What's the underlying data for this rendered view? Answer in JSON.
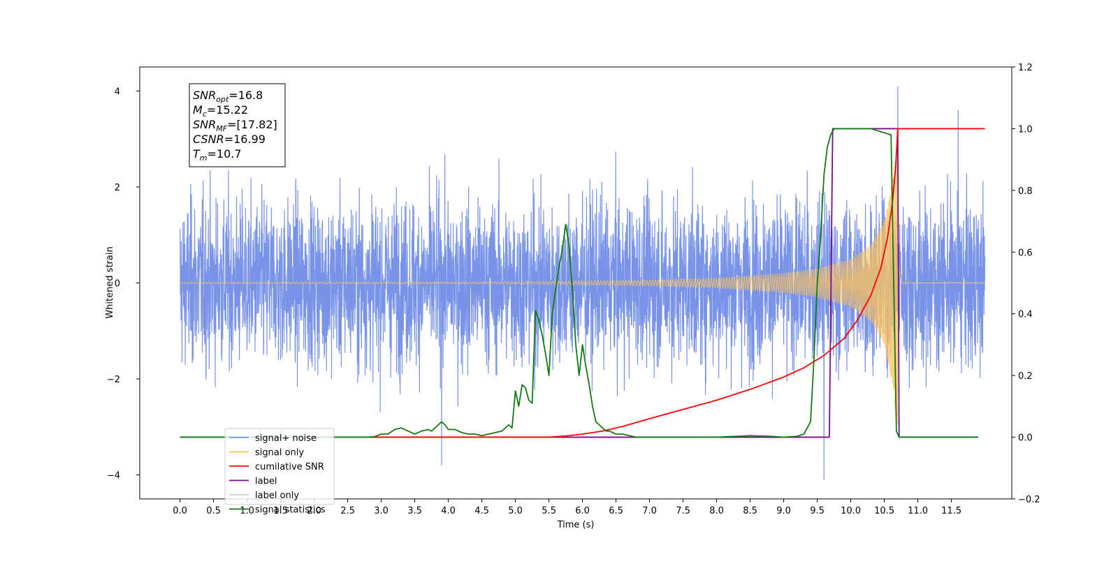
{
  "chart_data": {
    "type": "line",
    "xlabel": "Time (s)",
    "ylabel": "Whitened strain",
    "xlim": [
      -0.6,
      12.4
    ],
    "ylim_left": [
      -4.5,
      4.5
    ],
    "ylim_right": [
      -0.2,
      1.2
    ],
    "x_ticks": [
      0.0,
      0.5,
      1.0,
      1.5,
      2.0,
      2.5,
      3.0,
      3.5,
      4.0,
      4.5,
      5.0,
      5.5,
      6.0,
      6.5,
      7.0,
      7.5,
      8.0,
      8.5,
      9.0,
      9.5,
      10.0,
      10.5,
      11.0,
      11.5
    ],
    "x_tick_labels": [
      "0.0",
      "0.5",
      "1.0",
      "1.5",
      "2.0",
      "2.5",
      "3.0",
      "3.5",
      "4.0",
      "4.5",
      "5.0",
      "5.5",
      "6.0",
      "6.5",
      "7.0",
      "7.5",
      "8.0",
      "8.5",
      "9.0",
      "9.5",
      "10.0",
      "10.5",
      "11.0",
      "11.5"
    ],
    "y_left_ticks": [
      -4,
      -2,
      0,
      2,
      4
    ],
    "y_left_tick_labels": [
      "−4",
      "−2",
      "0",
      "2",
      "4"
    ],
    "y_right_ticks": [
      -0.2,
      0.0,
      0.2,
      0.4,
      0.6,
      0.8,
      1.0,
      1.2
    ],
    "y_right_tick_labels": [
      "−0.2",
      "0.0",
      "0.2",
      "0.4",
      "0.6",
      "0.8",
      "1.0",
      "1.2"
    ],
    "grid": false,
    "legend_placement": "lower-left",
    "annotation": {
      "lines": [
        {
          "main": "SNR",
          "sub": "opt",
          "value": "=16.8"
        },
        {
          "main": "M",
          "sub": "c",
          "value": "=15.22"
        },
        {
          "main": "SNR",
          "sub": "MF",
          "value": "=[17.82]"
        },
        {
          "main": "CSNR",
          "sub": "",
          "value": "=16.99"
        },
        {
          "main": "T",
          "sub": "m",
          "value": "=10.7"
        }
      ]
    },
    "series": [
      {
        "name": "signal+ noise",
        "axis": "left",
        "color": "#7893e8",
        "kind": "noise",
        "t_start": 0.0,
        "t_end": 12.0,
        "approx_range": [
          -4.1,
          4.1
        ],
        "notable_peaks": [
          [
            10.7,
            4.1
          ],
          [
            9.6,
            -4.1
          ],
          [
            11.6,
            3.6
          ],
          [
            3.9,
            -3.8
          ]
        ]
      },
      {
        "name": "signal only",
        "axis": "left",
        "color": "#ffc35a",
        "kind": "chirp",
        "t_start": 0.0,
        "t_end": 12.0,
        "merger_time": 10.7,
        "envelope": [
          [
            0.0,
            0.01
          ],
          [
            5.0,
            0.02
          ],
          [
            6.0,
            0.04
          ],
          [
            7.0,
            0.06
          ],
          [
            8.0,
            0.1
          ],
          [
            9.0,
            0.2
          ],
          [
            9.5,
            0.3
          ],
          [
            10.0,
            0.5
          ],
          [
            10.3,
            0.8
          ],
          [
            10.5,
            1.3
          ],
          [
            10.6,
            2.0
          ],
          [
            10.7,
            3.1
          ],
          [
            10.75,
            0.0
          ],
          [
            12.0,
            0.0
          ]
        ]
      },
      {
        "name": "cumilative SNR",
        "axis": "right",
        "color": "#ff0000",
        "x": [
          0.0,
          5.5,
          5.8,
          6.0,
          6.3,
          6.6,
          7.0,
          7.5,
          8.0,
          8.5,
          9.0,
          9.3,
          9.6,
          9.9,
          10.1,
          10.3,
          10.45,
          10.55,
          10.62,
          10.67,
          10.7,
          12.0
        ],
        "values": [
          0.0,
          0.0,
          0.005,
          0.01,
          0.02,
          0.035,
          0.06,
          0.09,
          0.12,
          0.155,
          0.195,
          0.225,
          0.265,
          0.32,
          0.38,
          0.46,
          0.55,
          0.65,
          0.76,
          0.88,
          1.0,
          1.0
        ]
      },
      {
        "name": "label",
        "axis": "right",
        "color": "#7b0a8b",
        "x": [
          0.0,
          9.68,
          9.73,
          10.7,
          10.72,
          11.9
        ],
        "values": [
          0.0,
          0.0,
          1.0,
          1.0,
          0.0,
          0.0
        ]
      },
      {
        "name": "label only",
        "axis": "right",
        "color": "#cccccc",
        "x": [],
        "values": []
      },
      {
        "name": "signal statistics",
        "axis": "right",
        "color": "#117a11",
        "x": [
          0.0,
          2.8,
          2.9,
          3.0,
          3.1,
          3.2,
          3.3,
          3.4,
          3.5,
          3.6,
          3.7,
          3.75,
          3.8,
          3.85,
          3.9,
          3.95,
          4.0,
          4.1,
          4.2,
          4.3,
          4.4,
          4.5,
          4.6,
          4.7,
          4.8,
          4.9,
          4.95,
          5.0,
          5.05,
          5.1,
          5.15,
          5.2,
          5.25,
          5.3,
          5.35,
          5.4,
          5.45,
          5.5,
          5.55,
          5.6,
          5.65,
          5.7,
          5.75,
          5.8,
          5.85,
          5.9,
          5.95,
          6.0,
          6.05,
          6.1,
          6.15,
          6.2,
          6.25,
          6.3,
          6.35,
          6.4,
          6.45,
          6.5,
          6.6,
          6.7,
          6.8,
          6.9,
          7.0,
          7.5,
          8.0,
          8.5,
          8.8,
          9.0,
          9.2,
          9.3,
          9.4,
          9.45,
          9.5,
          9.55,
          9.6,
          9.65,
          9.7,
          9.75,
          9.8,
          9.9,
          10.0,
          10.3,
          10.6,
          10.68,
          10.72,
          10.8,
          11.9
        ],
        "values": [
          0.0,
          0.0,
          0.002,
          0.01,
          0.01,
          0.025,
          0.03,
          0.02,
          0.01,
          0.02,
          0.025,
          0.02,
          0.03,
          0.04,
          0.05,
          0.04,
          0.025,
          0.025,
          0.015,
          0.01,
          0.01,
          0.005,
          0.01,
          0.015,
          0.02,
          0.04,
          0.03,
          0.15,
          0.1,
          0.17,
          0.16,
          0.12,
          0.11,
          0.41,
          0.38,
          0.33,
          0.27,
          0.2,
          0.4,
          0.48,
          0.55,
          0.61,
          0.69,
          0.62,
          0.48,
          0.3,
          0.2,
          0.3,
          0.23,
          0.17,
          0.1,
          0.05,
          0.04,
          0.03,
          0.02,
          0.02,
          0.015,
          0.01,
          0.01,
          0.005,
          0.0,
          0.0,
          0.0,
          0.0,
          0.0,
          0.005,
          0.003,
          0.0,
          0.003,
          0.01,
          0.05,
          0.25,
          0.5,
          0.65,
          0.85,
          0.94,
          0.98,
          1.0,
          1.0,
          1.0,
          1.0,
          1.0,
          0.98,
          0.02,
          0.0,
          0.0,
          0.0
        ]
      }
    ]
  }
}
